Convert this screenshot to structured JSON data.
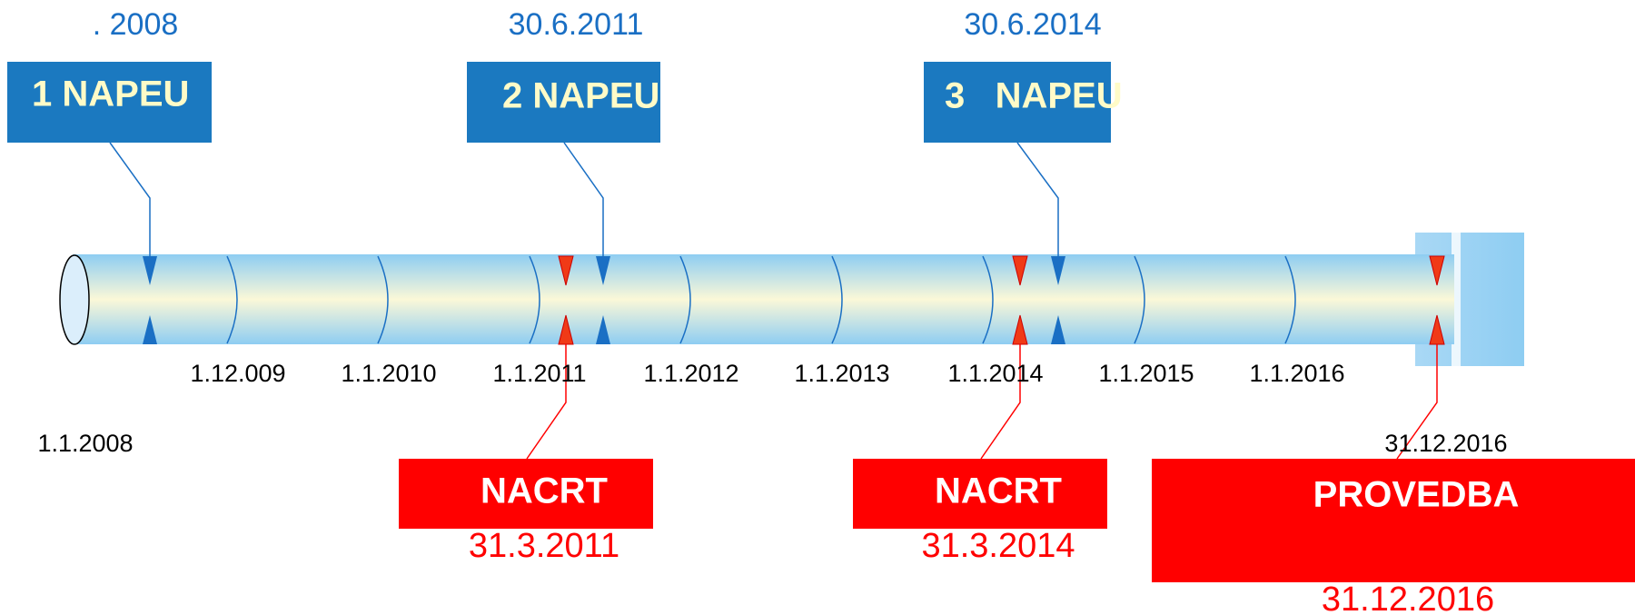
{
  "milestones": [
    {
      "date": ". 2008",
      "label": "1 NAPEU"
    },
    {
      "date": "30.6.2011",
      "label": "2 NAPEU"
    },
    {
      "date": "30.6.2014",
      "label": "3   NAPEU"
    }
  ],
  "axis_labels": [
    "1.1.2008",
    "1.12.009",
    "1.1.2010",
    "1.1.2011",
    "1.1.2012",
    "1.1.2013",
    "1.1.2014",
    "1.1.2015",
    "1.1.2016",
    "31.12.2016"
  ],
  "deadlines": [
    {
      "label": "NACRT",
      "date": "31.3.2011"
    },
    {
      "label": "NACRT",
      "date": "31.3.2014"
    },
    {
      "label": "PROVEDBA",
      "date": "31.12.2016"
    }
  ]
}
